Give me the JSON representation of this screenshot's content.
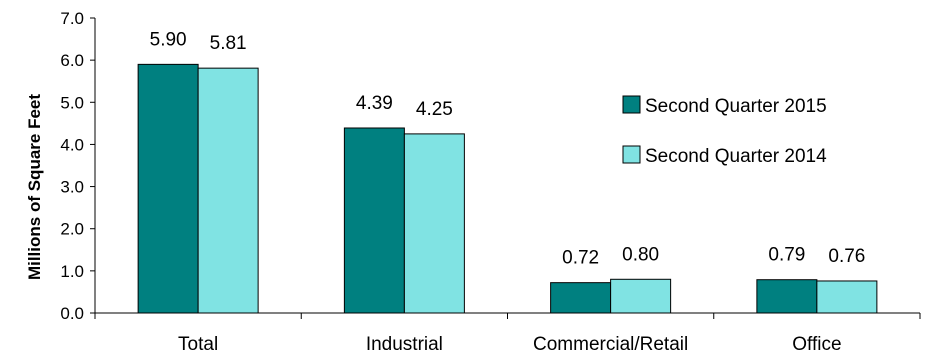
{
  "chart_data": {
    "type": "bar",
    "title": "",
    "xlabel": "",
    "ylabel": "Millions of Square Feet",
    "categories": [
      "Total",
      "Industrial",
      "Commercial/Retail",
      "Office"
    ],
    "series": [
      {
        "name": "Second Quarter 2015",
        "values": [
          5.9,
          4.39,
          0.72,
          0.79
        ],
        "labels": [
          "5.90",
          "4.39",
          "0.72",
          "0.79"
        ],
        "color": "#008080"
      },
      {
        "name": "Second Quarter 2014",
        "values": [
          5.81,
          4.25,
          0.8,
          0.76
        ],
        "labels": [
          "5.81",
          "4.25",
          "0.80",
          "0.76"
        ],
        "color": "#80E3E3"
      }
    ],
    "ylim": [
      0,
      7.0
    ],
    "yticks": [
      "0.0",
      "1.0",
      "2.0",
      "3.0",
      "4.0",
      "5.0",
      "6.0",
      "7.0"
    ],
    "grid": false,
    "legend_position": "right"
  }
}
